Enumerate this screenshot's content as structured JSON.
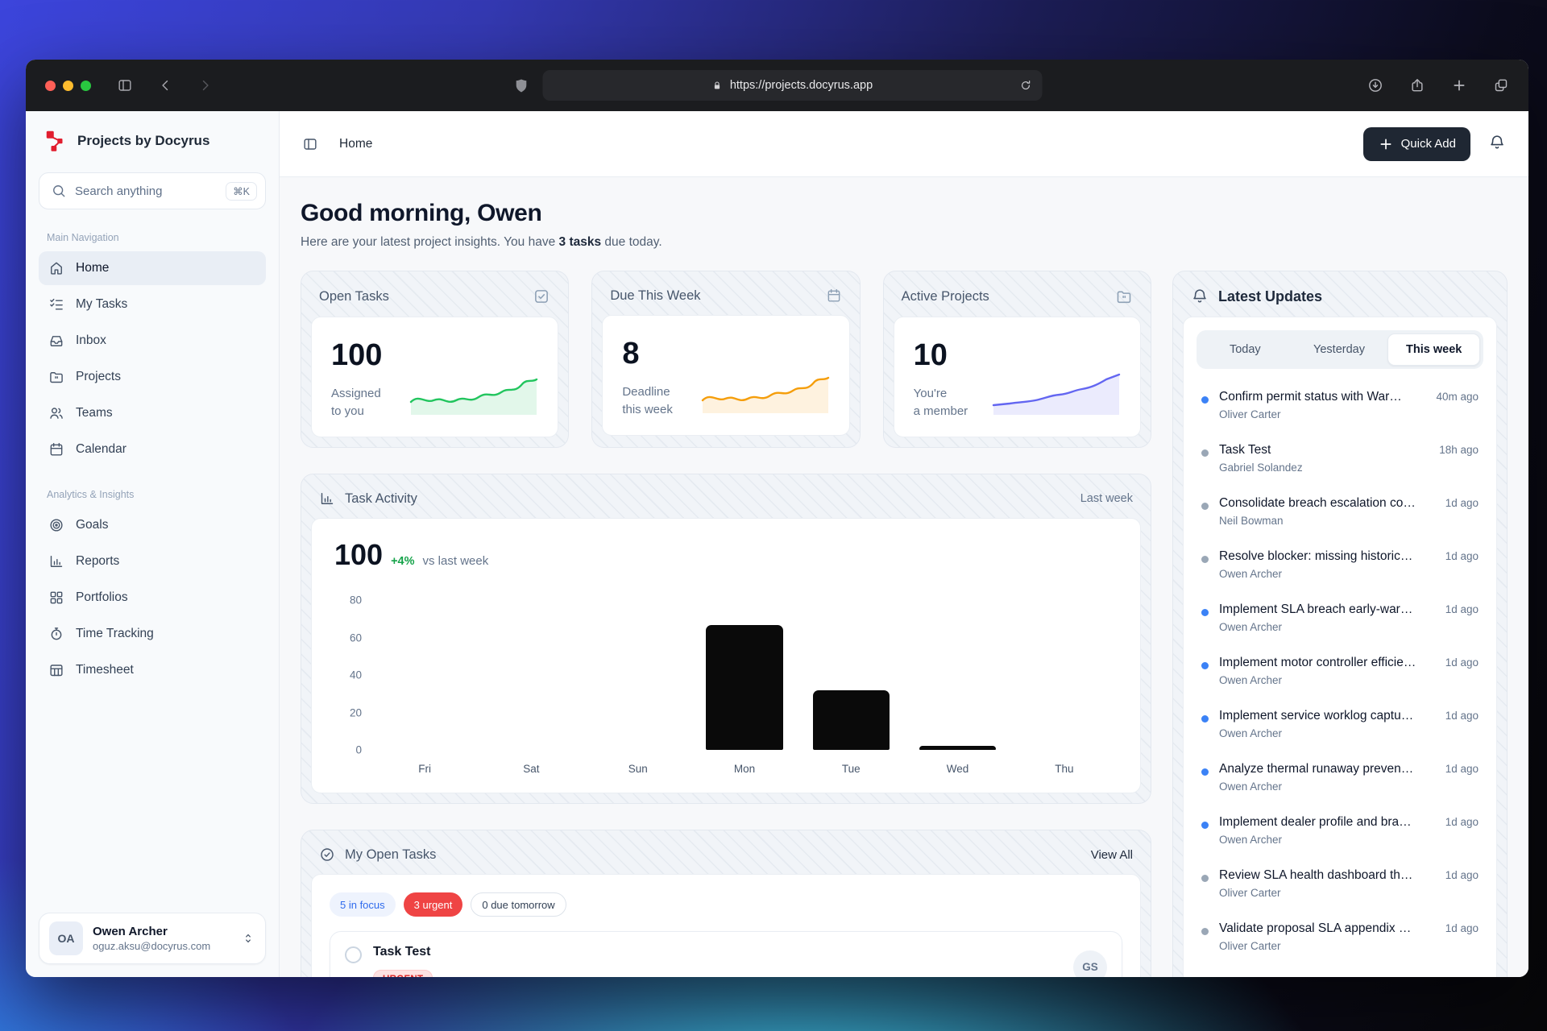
{
  "browser": {
    "url": "https://projects.docyrus.app"
  },
  "sidebar": {
    "brand": "Projects by Docyrus",
    "search": {
      "placeholder": "Search anything",
      "shortcut": "⌘K"
    },
    "sections": [
      {
        "label": "Main Navigation",
        "items": [
          {
            "label": "Home",
            "icon": "home",
            "active": true
          },
          {
            "label": "My Tasks",
            "icon": "my-tasks"
          },
          {
            "label": "Inbox",
            "icon": "inbox"
          },
          {
            "label": "Projects",
            "icon": "projects"
          },
          {
            "label": "Teams",
            "icon": "teams"
          },
          {
            "label": "Calendar",
            "icon": "calendar"
          }
        ]
      },
      {
        "label": "Analytics & Insights",
        "items": [
          {
            "label": "Goals",
            "icon": "goals"
          },
          {
            "label": "Reports",
            "icon": "bar-chart"
          },
          {
            "label": "Portfolios",
            "icon": "portfolios"
          },
          {
            "label": "Time Tracking",
            "icon": "time-tracking"
          },
          {
            "label": "Timesheet",
            "icon": "timesheet"
          }
        ]
      }
    ],
    "user": {
      "initials": "OA",
      "name": "Owen Archer",
      "email": "oguz.aksu@docyrus.com"
    }
  },
  "header": {
    "breadcrumb": "Home",
    "quick_add": "Quick Add"
  },
  "greeting": {
    "title": "Good morning, Owen",
    "subtitle_prefix": "Here are your latest project insights. You have ",
    "subtitle_bold": "3 tasks",
    "subtitle_suffix": " due today."
  },
  "stats": [
    {
      "title": "Open Tasks",
      "icon": "check-square",
      "value": "100",
      "line1": "Assigned",
      "line2": "to you",
      "color": "#22c55e"
    },
    {
      "title": "Due This Week",
      "icon": "calendar",
      "value": "8",
      "line1": "Deadline",
      "line2": "this week",
      "color": "#f59e0b"
    },
    {
      "title": "Active Projects",
      "icon": "folder",
      "value": "10",
      "line1": "You're",
      "line2": "a member",
      "color": "#6366f1"
    }
  ],
  "chart_data": {
    "type": "bar",
    "title": "Task Activity",
    "period": "Last week",
    "total": "100",
    "delta": "+4%",
    "delta_label": "vs last week",
    "delta_color": "#16a34a",
    "bar_color": "#0a0a0a",
    "categories": [
      "Fri",
      "Sat",
      "Sun",
      "Mon",
      "Tue",
      "Wed",
      "Thu"
    ],
    "values": [
      0,
      0,
      0,
      67,
      32,
      2,
      0
    ],
    "yticks": [
      0,
      20,
      40,
      60,
      80
    ],
    "ylim": [
      0,
      88
    ],
    "grid": false,
    "xlabel": "",
    "ylabel": ""
  },
  "open_tasks": {
    "title": "My Open Tasks",
    "view_all": "View All",
    "badges": [
      {
        "label": "5 in focus",
        "style": "focus"
      },
      {
        "label": "3 urgent",
        "style": "urgent"
      },
      {
        "label": "0 due tomorrow",
        "style": "neutral"
      }
    ],
    "task": {
      "title": "Task Test",
      "priority": "URGENT",
      "assignee_initials": "GS"
    }
  },
  "updates": {
    "title": "Latest Updates",
    "tabs": [
      {
        "label": "Today",
        "active": false
      },
      {
        "label": "Yesterday",
        "active": false
      },
      {
        "label": "This week",
        "active": true
      }
    ],
    "unread_color": "#3b82f6",
    "read_color": "#9aa7b6",
    "items": [
      {
        "title": "Confirm permit status with War…",
        "author": "Oliver Carter",
        "time": "40m ago",
        "unread": true
      },
      {
        "title": "Task Test",
        "author": "Gabriel Solandez",
        "time": "18h ago",
        "unread": false
      },
      {
        "title": "Consolidate breach escalation co…",
        "author": "Neil Bowman",
        "time": "1d ago",
        "unread": false
      },
      {
        "title": "Resolve blocker: missing historic…",
        "author": "Owen Archer",
        "time": "1d ago",
        "unread": false
      },
      {
        "title": "Implement SLA breach early-war…",
        "author": "Owen Archer",
        "time": "1d ago",
        "unread": true
      },
      {
        "title": "Implement motor controller efficie…",
        "author": "Owen Archer",
        "time": "1d ago",
        "unread": true
      },
      {
        "title": "Implement service worklog captu…",
        "author": "Owen Archer",
        "time": "1d ago",
        "unread": true
      },
      {
        "title": "Analyze thermal runaway preven…",
        "author": "Owen Archer",
        "time": "1d ago",
        "unread": true
      },
      {
        "title": "Implement dealer profile and bra…",
        "author": "Owen Archer",
        "time": "1d ago",
        "unread": true
      },
      {
        "title": "Review SLA health dashboard th…",
        "author": "Oliver Carter",
        "time": "1d ago",
        "unread": false
      },
      {
        "title": "Validate proposal SLA appendix …",
        "author": "Oliver Carter",
        "time": "1d ago",
        "unread": false
      }
    ]
  }
}
